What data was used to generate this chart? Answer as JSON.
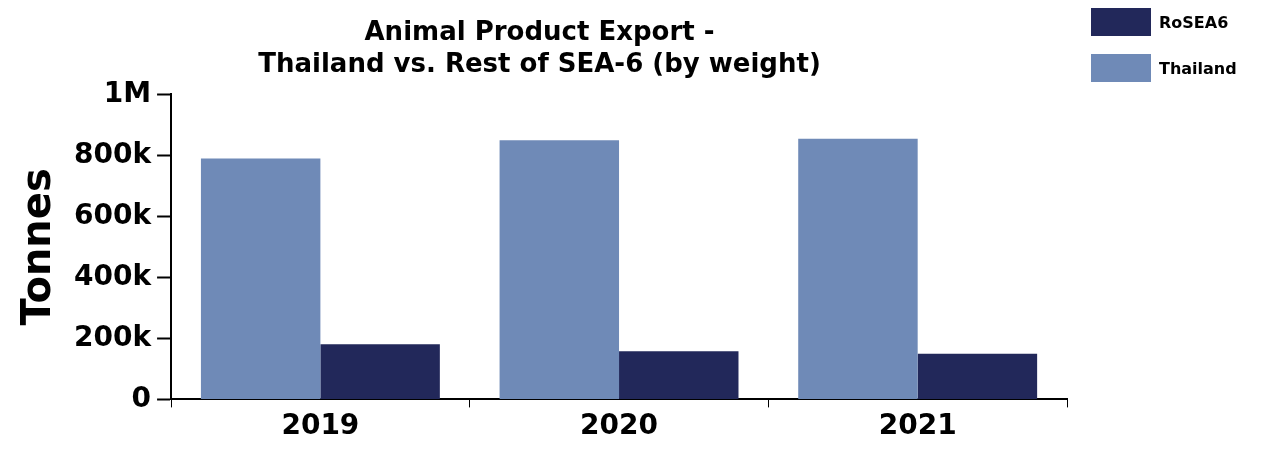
{
  "chart_data": {
    "type": "bar",
    "title": "Animal Product Export -\nThailand vs. Rest of SEA-6 (by weight)",
    "ylabel": "Tonnes",
    "categories": [
      "2019",
      "2020",
      "2021"
    ],
    "series": [
      {
        "name": "Thailand",
        "color": "#6f8ab7",
        "values": [
          790000,
          850000,
          855000
        ]
      },
      {
        "name": "RoSEA6",
        "color": "#22285a",
        "values": [
          181000,
          158000,
          150000
        ]
      }
    ],
    "ylim": [
      0,
      1000000
    ],
    "yticks": [
      {
        "value": 0,
        "label": "0"
      },
      {
        "value": 200000,
        "label": "200k"
      },
      {
        "value": 400000,
        "label": "400k"
      },
      {
        "value": 600000,
        "label": "600k"
      },
      {
        "value": 800000,
        "label": "800k"
      },
      {
        "value": 1000000,
        "label": "1M"
      }
    ],
    "grid": false,
    "legend": "top right"
  }
}
